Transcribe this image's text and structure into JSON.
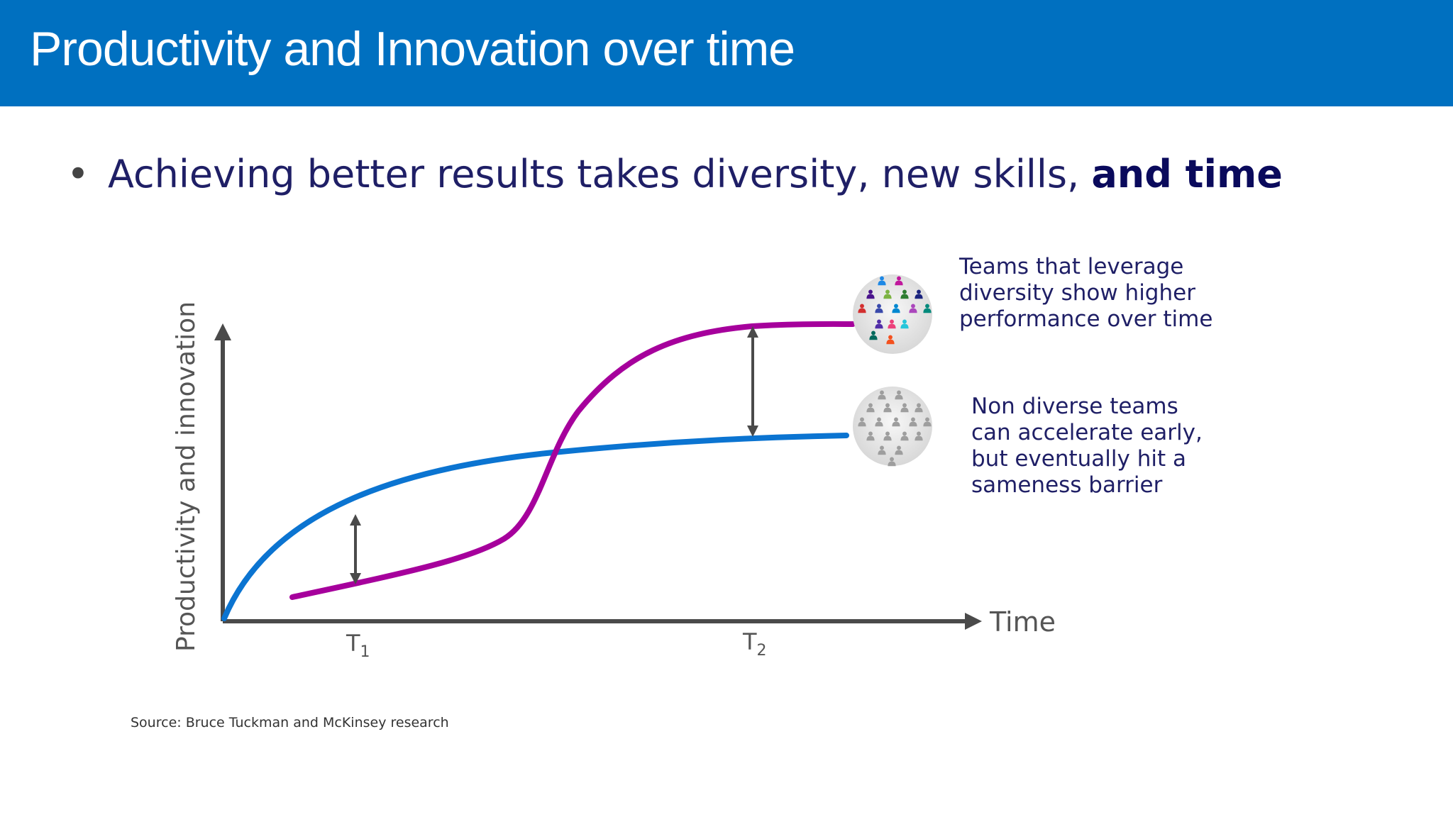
{
  "slide": {
    "title": "Productivity and Innovation over time",
    "bullet": {
      "lead": "Achieving better results takes diversity, new skills, ",
      "emphasis": "and time"
    },
    "source": "Source: Bruce Tuckman and McKinsey research"
  },
  "diagram": {
    "y_axis_label": "Productivity and innovation",
    "x_axis_label": "Time",
    "markers": [
      {
        "base": "T",
        "sub": "1"
      },
      {
        "base": "T",
        "sub": "2"
      }
    ],
    "notes": {
      "diverse": "Teams that leverage\ndiversity show higher\nperformance over time",
      "non_diverse": "Non diverse teams\ncan accelerate early,\nbut eventually hit a\nsameness barrier"
    },
    "icons": {
      "diverse": "diverse-team-icon",
      "non_diverse": "uniform-team-icon"
    },
    "colors": {
      "header": "#0070c0",
      "diverse_curve": "#a6009c",
      "non_diverse_curve": "#0b74d1",
      "axis": "#4a4a4a"
    }
  }
}
